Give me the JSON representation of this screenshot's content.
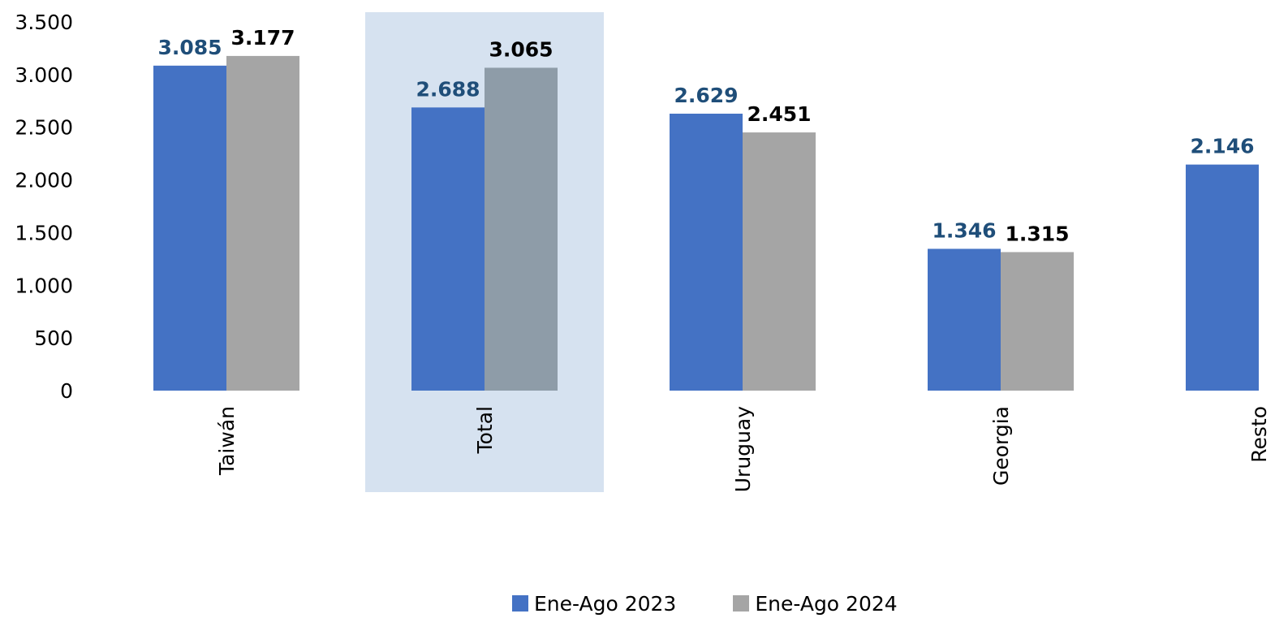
{
  "chart_data": {
    "type": "bar",
    "title": "",
    "xlabel": "",
    "ylabel": "",
    "categories": [
      "Taiwán",
      "Total",
      "Uruguay",
      "Georgia",
      "Resto"
    ],
    "series": [
      {
        "name": "Ene-Ago 2023",
        "values": [
          3085,
          2688,
          2629,
          1346,
          2146
        ],
        "labels": [
          "3.085",
          "2.688",
          "2.629",
          "1.346",
          "2.146"
        ],
        "color": "#4472C4",
        "label_color": "#1F4E79"
      },
      {
        "name": "Ene-Ago 2024",
        "values": [
          3177,
          3065,
          2451,
          1315,
          null
        ],
        "labels": [
          "3.177",
          "3.065",
          "2.451",
          "1.315",
          ""
        ],
        "color": "#A5A5A5",
        "label_color": "#000000"
      }
    ],
    "highlight_category": "Total",
    "highlight_colors": {
      "band": "#D6E2F0",
      "series_2_bar": "#8E9CA8"
    },
    "ylim": [
      0,
      3500
    ],
    "yticks": [
      0,
      500,
      1000,
      1500,
      2000,
      2500,
      3000,
      3500
    ],
    "ytick_labels": [
      "0",
      "500",
      "1.000",
      "1.500",
      "2.000",
      "2.500",
      "3.000",
      "3.500"
    ],
    "grid": false,
    "legend": "bottom-center"
  }
}
